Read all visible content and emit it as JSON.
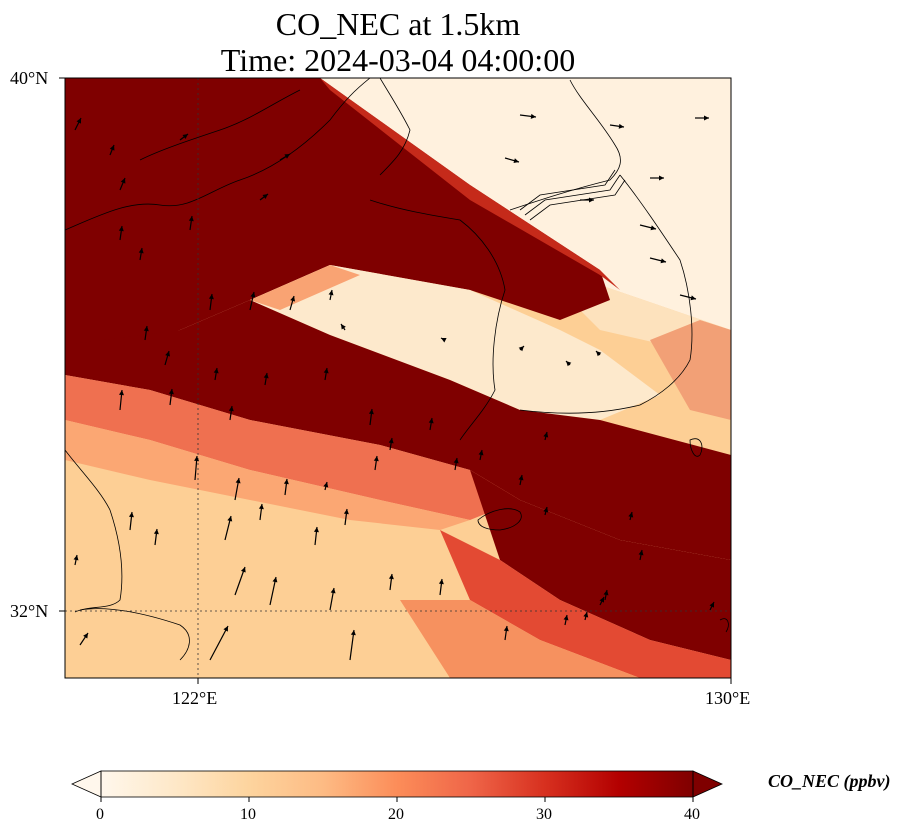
{
  "title": {
    "line1": "CO_NEC at 1.5km",
    "line2": "Time: 2024-03-04 04:00:00"
  },
  "map": {
    "variable": "CO_NEC",
    "height": "1.5km",
    "extent": {
      "lon_min": 120,
      "lon_max": 130,
      "lat_min": 31,
      "lat_max": 40
    },
    "gridlines": {
      "lon": [
        122
      ],
      "lat": [
        32
      ]
    },
    "lat_tick_labels": [
      "40°N",
      "32°N"
    ],
    "lon_tick_labels": [
      "122°E",
      "130°E"
    ],
    "plume_bands": [
      {
        "name": "northern plume",
        "low_intensity": "light",
        "center_edge": "dark"
      },
      {
        "name": "central plume"
      },
      {
        "name": "southern plume"
      }
    ],
    "wind_vector_field": "shown"
  },
  "colorbar": {
    "label": "CO_NEC (ppbv)",
    "min": 0,
    "max": 40,
    "ticks": [
      "0",
      "10",
      "20",
      "30",
      "40"
    ],
    "extend": "both",
    "colormap": "OrRd",
    "colors": [
      "#fff7ec",
      "#fee8c8",
      "#fdd49e",
      "#fdbb84",
      "#fc8d59",
      "#ef6548",
      "#d7301f",
      "#b30000",
      "#7f0000"
    ]
  }
}
